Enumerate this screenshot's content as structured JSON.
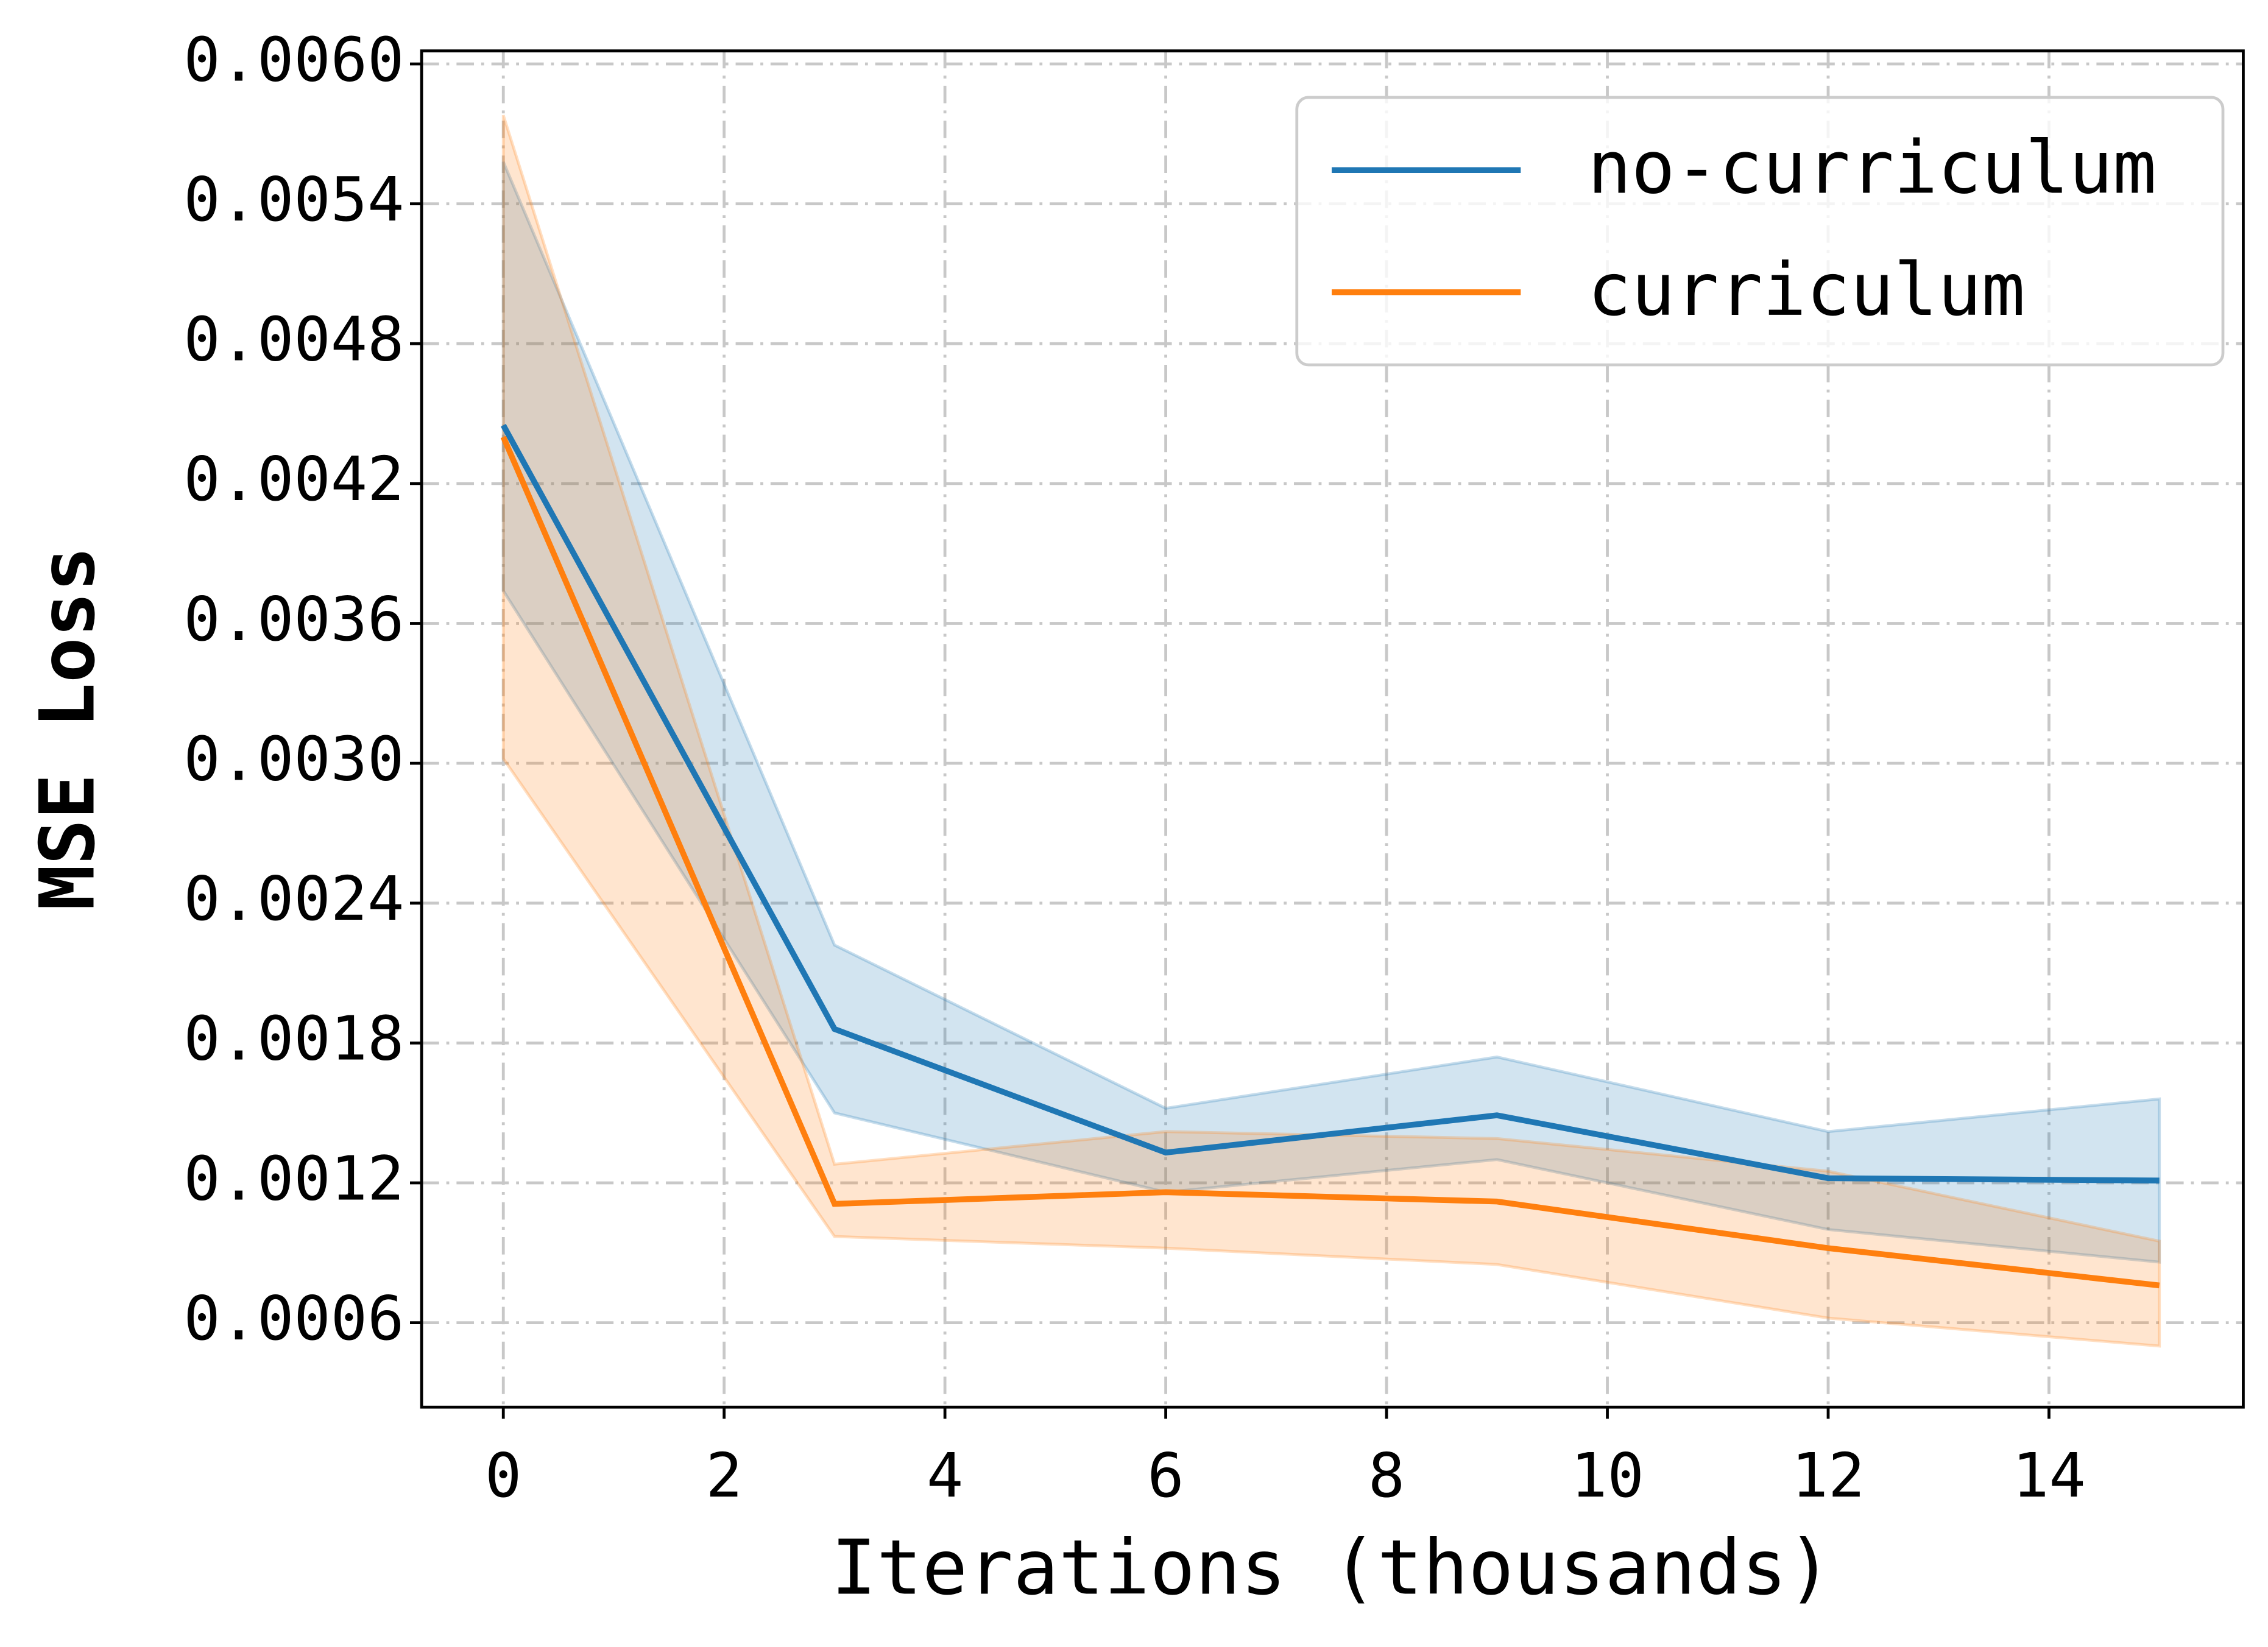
{
  "chart_data": {
    "type": "line",
    "xlabel": "Iterations (thousands)",
    "ylabel": "MSE Loss",
    "x": [
      0,
      3,
      6,
      9,
      12,
      15
    ],
    "series": [
      {
        "name": "no-curriculum",
        "color": "#1f77b4",
        "values": [
          0.00445,
          0.00186,
          0.00133,
          0.00149,
          0.00122,
          0.00121
        ],
        "upper": [
          0.00558,
          0.00222,
          0.00152,
          0.00174,
          0.00142,
          0.00156
        ],
        "lower": [
          0.00374,
          0.0015,
          0.00116,
          0.0013,
          0.001,
          0.00086
        ]
      },
      {
        "name": "curriculum",
        "color": "#ff7f0e",
        "values": [
          0.0044,
          0.00111,
          0.00116,
          0.00112,
          0.00092,
          0.00076
        ],
        "upper": [
          0.00578,
          0.00128,
          0.00142,
          0.00139,
          0.00125,
          0.00095
        ],
        "lower": [
          0.00302,
          0.00097,
          0.00092,
          0.00085,
          0.00062,
          0.0005
        ]
      }
    ],
    "xlim": [
      -0.74,
      15.76
    ],
    "ylim": [
      0.000238,
      0.006056
    ],
    "xticks": [
      0,
      2,
      4,
      6,
      8,
      10,
      12,
      14
    ],
    "yticks": [
      {
        "value": 0.006,
        "label": "0.0060"
      },
      0.0054,
      0.0048,
      0.0042,
      0.0036,
      {
        "value": 0.003,
        "label": "0.0030"
      },
      0.0024,
      0.0018,
      0.0012,
      0.0006
    ],
    "grid": true,
    "legend": "upper right"
  }
}
